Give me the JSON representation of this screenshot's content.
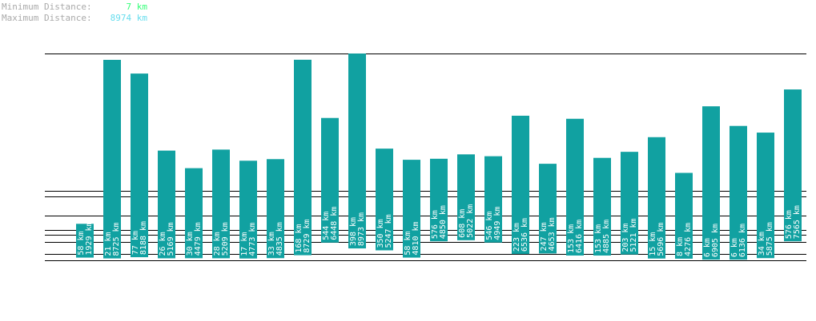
{
  "stats": {
    "min_label": "Minimum Distance:",
    "min_value": "7 km",
    "max_label": "Maximum Distance:",
    "max_value": "8974 km"
  },
  "colors": {
    "bar": "#11a1a1",
    "gridline": "#000000",
    "min_value": "#33ff77",
    "max_value": "#66ddee",
    "stat_label": "#a9a9a9"
  },
  "chart_data": {
    "type": "bar",
    "subtype": "floating-range",
    "unit": "km",
    "title": "",
    "xlabel": "",
    "ylabel": "",
    "ylim": [
      0,
      8974
    ],
    "y_reference_lines": [
      7,
      300,
      600,
      1000,
      1500,
      2500,
      3500,
      4500,
      8974
    ],
    "series": [
      {
        "low": 58,
        "high": 1929
      },
      {
        "low": 21,
        "high": 8725
      },
      {
        "low": 77,
        "high": 8188
      },
      {
        "low": 26,
        "high": 5169
      },
      {
        "low": 30,
        "high": 4479
      },
      {
        "low": 28,
        "high": 5209
      },
      {
        "low": 17,
        "high": 4773
      },
      {
        "low": 33,
        "high": 4835
      },
      {
        "low": 168,
        "high": 8729
      },
      {
        "low": 544,
        "high": 6448
      },
      {
        "low": 398,
        "high": 8973
      },
      {
        "low": 350,
        "high": 5247
      },
      {
        "low": 58,
        "high": 4810
      },
      {
        "low": 576,
        "high": 4850
      },
      {
        "low": 608,
        "high": 5022
      },
      {
        "low": 546,
        "high": 4949
      },
      {
        "low": 223,
        "high": 6536
      },
      {
        "low": 247,
        "high": 4653
      },
      {
        "low": 153,
        "high": 6416
      },
      {
        "low": 153,
        "high": 4885
      },
      {
        "low": 203,
        "high": 5121
      },
      {
        "low": 15,
        "high": 5696
      },
      {
        "low": 8,
        "high": 4276
      },
      {
        "low": 6,
        "high": 6905
      },
      {
        "low": 6,
        "high": 6136
      },
      {
        "low": 34,
        "high": 5875
      },
      {
        "low": 576,
        "high": 7565
      }
    ]
  }
}
